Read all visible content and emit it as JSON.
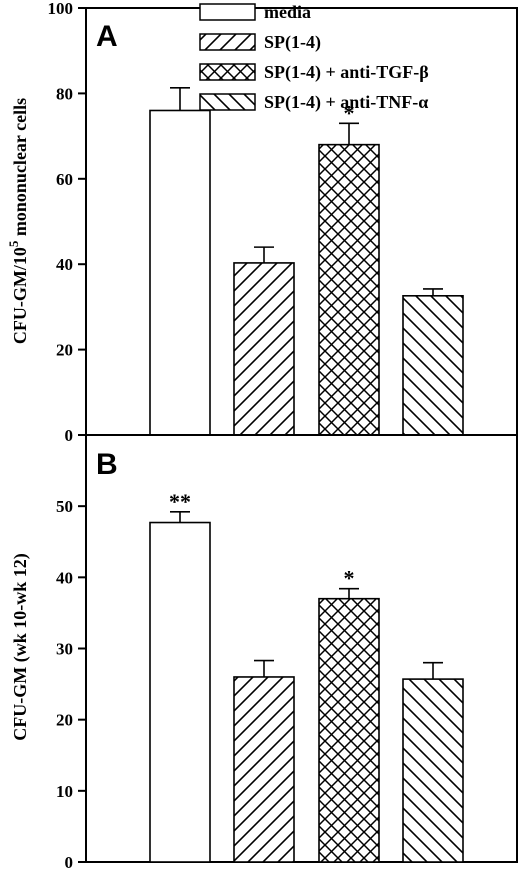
{
  "chart_data": [
    {
      "panel": "A",
      "type": "bar",
      "ylabel_main": "CFU-GM/10",
      "ylabel_sup": "5",
      "ylabel_rest": " mononuclear cells",
      "ylim": [
        0,
        100
      ],
      "yticks": [
        0,
        20,
        40,
        60,
        80,
        100
      ],
      "grid": false,
      "legend_position": "top",
      "categories": [
        "media",
        "SP(1-4)",
        "SP(1-4) + anti-TGF-β",
        "SP(1-4) + anti-TNF-α"
      ],
      "patterns": [
        "none",
        "diagonal",
        "crosshatch",
        "backdiagonal"
      ],
      "values": [
        76,
        40.3,
        68,
        32.6
      ],
      "errors": [
        5.3,
        3.7,
        5,
        1.6
      ],
      "significance": [
        "",
        "",
        "*",
        ""
      ]
    },
    {
      "panel": "B",
      "type": "bar",
      "ylabel": "CFU-GM (wk 10-wk 12)",
      "ylim": [
        0,
        60
      ],
      "yticks": [
        0,
        10,
        20,
        30,
        40,
        50
      ],
      "grid": false,
      "categories": [
        "media",
        "SP(1-4)",
        "SP(1-4) + anti-TGF-β",
        "SP(1-4) + anti-TNF-α"
      ],
      "patterns": [
        "none",
        "diagonal",
        "crosshatch",
        "backdiagonal"
      ],
      "values": [
        47.7,
        26,
        37,
        25.7
      ],
      "errors": [
        1.5,
        2.3,
        1.4,
        2.3
      ],
      "significance": [
        "**",
        "*",
        "",
        ""
      ]
    }
  ]
}
